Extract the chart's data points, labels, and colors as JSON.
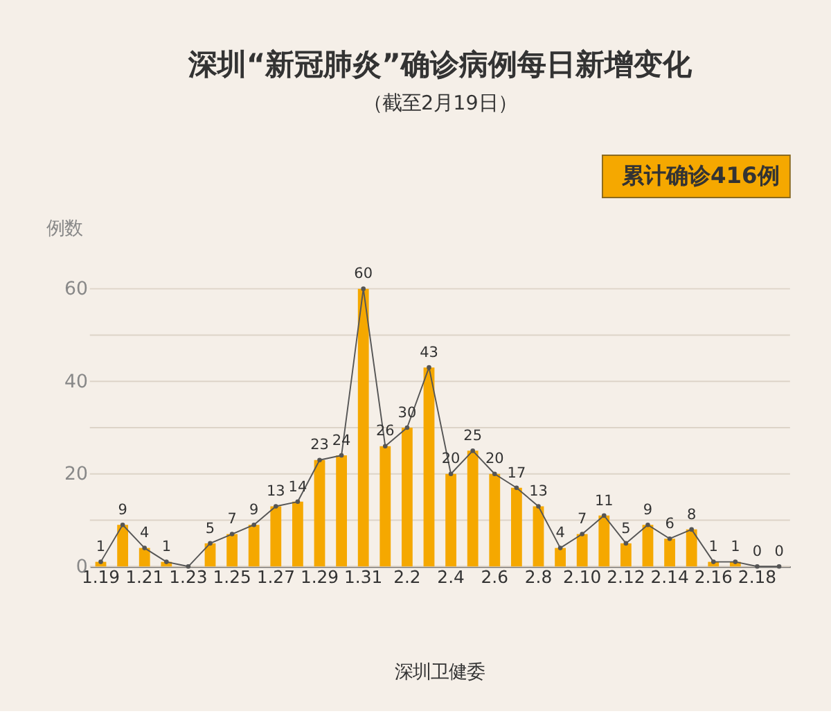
{
  "chart_data": {
    "type": "bar",
    "title": "深圳“新冠肺炎”确诊病例每日新增变化",
    "subtitle": "（截至2月19日）",
    "ylabel": "例数",
    "categories": [
      "1.19",
      null,
      "1.21",
      null,
      "1.23",
      null,
      "1.25",
      null,
      "1.27",
      null,
      "1.29",
      null,
      "1.31",
      null,
      "2.2",
      null,
      "2.4",
      null,
      "2.6",
      null,
      "2.8",
      null,
      "2.10",
      null,
      "2.12",
      null,
      "2.14",
      null,
      "2.16",
      null,
      "2.18",
      null
    ],
    "series": [
      {
        "color": "#f5a800",
        "values": [
          1,
          9,
          4,
          1,
          0,
          5,
          7,
          9,
          13,
          14,
          23,
          24,
          60,
          26,
          30,
          43,
          20,
          25,
          20,
          17,
          13,
          4,
          7,
          11,
          5,
          9,
          6,
          8,
          1,
          1,
          0,
          0
        ]
      },
      {
        "type": "line",
        "color": "#555555",
        "values": [
          1,
          9,
          4,
          1,
          0,
          5,
          7,
          9,
          13,
          14,
          23,
          24,
          60,
          26,
          30,
          43,
          20,
          25,
          20,
          17,
          13,
          4,
          7,
          11,
          5,
          9,
          6,
          8,
          1,
          1,
          0,
          0
        ],
        "value_labels": [
          "1",
          "9",
          "4",
          "1",
          null,
          "5",
          "7",
          "9",
          "13",
          "14",
          "23",
          "24",
          "60",
          "26",
          "30",
          "43",
          "20",
          "25",
          "20",
          "17",
          "13",
          "4",
          "7",
          "11",
          "5",
          "9",
          "6",
          "8",
          "1",
          "1",
          "0",
          "0"
        ]
      }
    ],
    "ylim": [
      0,
      60
    ],
    "yticks": [
      0,
      {
        "value": 10,
        "label": null
      },
      20,
      {
        "value": 30,
        "label": null
      },
      40,
      {
        "value": 50,
        "label": null
      },
      60
    ],
    "grid": "y",
    "marker": "circle",
    "annotations": [
      "累计确诊416例",
      "深圳卫健委"
    ]
  }
}
